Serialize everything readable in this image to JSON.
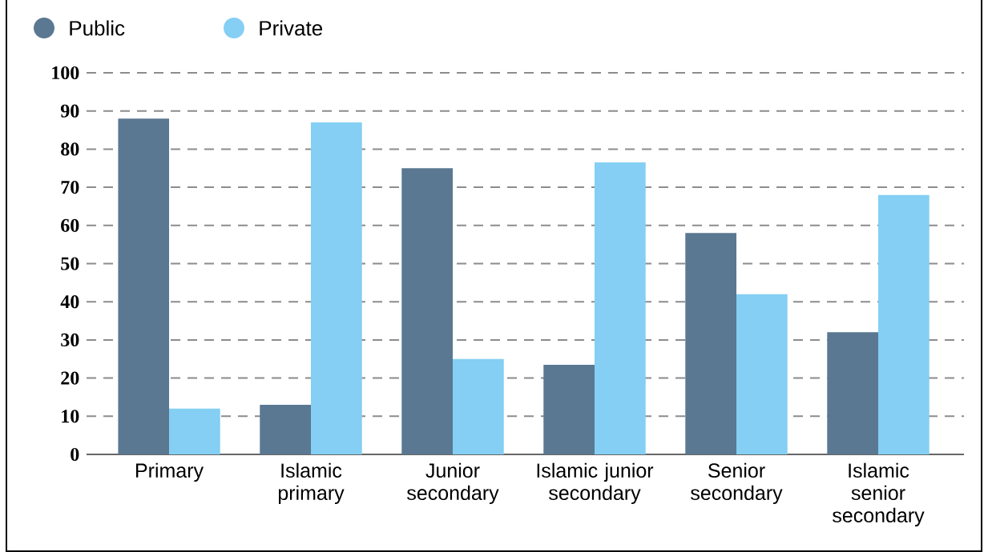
{
  "chart_data": {
    "type": "bar",
    "categories": [
      "Primary",
      "Islamic primary",
      "Junior secondary",
      "Islamic junior secondary",
      "Senior secondary",
      "Islamic senior secondary"
    ],
    "series": [
      {
        "name": "Public",
        "color": "#5a7891",
        "values": [
          88,
          13,
          75,
          23.5,
          58,
          32
        ]
      },
      {
        "name": "Private",
        "color": "#84cff3",
        "values": [
          12,
          87,
          25,
          76.5,
          42,
          68
        ]
      }
    ],
    "ylim": [
      0,
      100
    ],
    "yticks": [
      0,
      10,
      20,
      30,
      40,
      50,
      60,
      70,
      80,
      90,
      100
    ],
    "grid": "y",
    "legend": "top left"
  }
}
